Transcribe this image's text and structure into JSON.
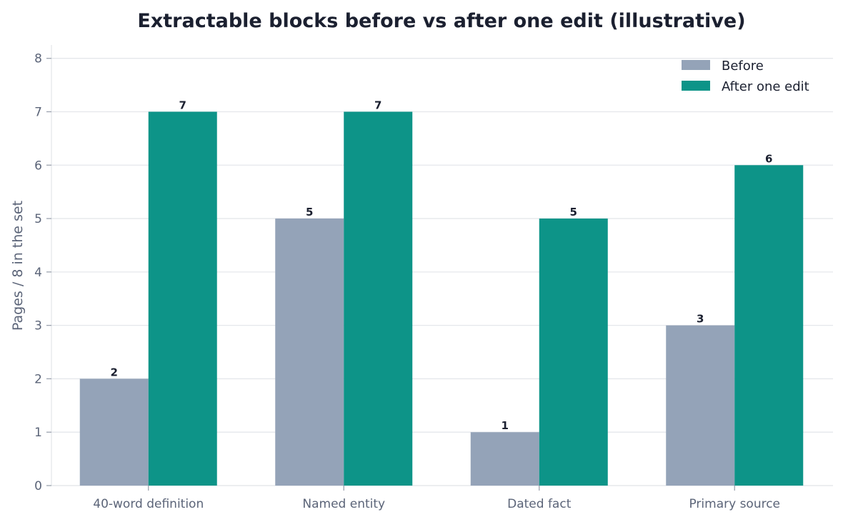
{
  "chart_data": {
    "type": "bar",
    "title": "Extractable blocks before vs after one edit (illustrative)",
    "xlabel": "",
    "ylabel": "Pages / 8 in the set",
    "categories": [
      "40-word definition",
      "Named entity",
      "Dated fact",
      "Primary source"
    ],
    "series": [
      {
        "name": "Before",
        "values": [
          2,
          5,
          1,
          3
        ],
        "color": "#94a3b8"
      },
      {
        "name": "After one edit",
        "values": [
          7,
          7,
          5,
          6
        ],
        "color": "#0d9488"
      }
    ],
    "ylim": [
      0,
      8.25
    ],
    "yticks": [
      0,
      1,
      2,
      3,
      4,
      5,
      6,
      7,
      8
    ],
    "grid": true,
    "legend_position": "top-right",
    "data_labels": true
  }
}
